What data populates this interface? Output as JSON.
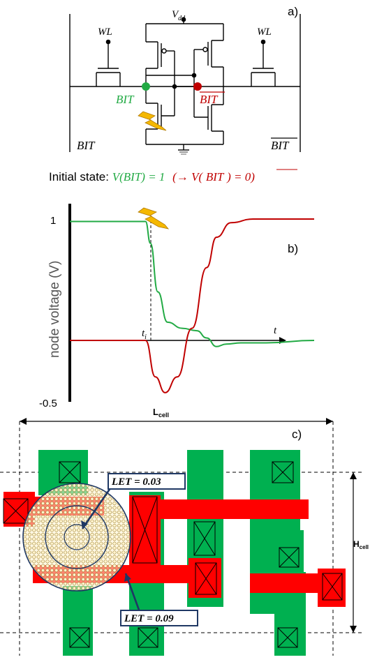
{
  "panel_a": {
    "label": "a)",
    "vdd": "V",
    "vdd_sub": "dd",
    "wl_left": "WL",
    "wl_right": "WL",
    "bit_node": "BIT",
    "bitbar_node": "BIT",
    "bitline_left": "BIT",
    "bitline_right": "BIT",
    "initial_prefix": "Initial state:",
    "initial_green": "V(BIT) = 1",
    "initial_red_open": "(→ V(",
    "initial_red_bit": "BIT",
    "initial_red_close": ") = 0)",
    "colors": {
      "green": "#22aa44",
      "red": "#c00000",
      "strike": "#f5b800"
    }
  },
  "panel_b": {
    "label": "b)",
    "ylabel": "node voltage (V)",
    "tick_top": "1",
    "tick_bottom": "-0.5",
    "ti": "t",
    "ti_sub": "i",
    "t": "t",
    "chart_data": {
      "type": "line",
      "ylim": [
        -0.5,
        1
      ],
      "xlim": [
        0,
        10
      ],
      "ti": 3.1,
      "series": [
        {
          "color": "#22aa44",
          "x": [
            0,
            3.0,
            3.1,
            3.3,
            3.6,
            4.0,
            4.6,
            5.2,
            5.6,
            6.0,
            6.4,
            7.0,
            8.0,
            10
          ],
          "y": [
            0.98,
            0.98,
            0.98,
            0.8,
            0.4,
            0.15,
            0.1,
            0.08,
            0.02,
            -0.05,
            -0.03,
            -0.02,
            -0.02,
            0.0
          ]
        },
        {
          "color": "#c00000",
          "x": [
            0,
            3.0,
            3.1,
            3.5,
            3.9,
            4.4,
            5.0,
            5.6,
            6.0,
            6.6,
            7.5,
            8.5,
            10
          ],
          "y": [
            0.0,
            0.0,
            0.0,
            -0.3,
            -0.43,
            -0.3,
            0.1,
            0.6,
            0.85,
            0.97,
            1.0,
            1.0,
            1.0
          ]
        }
      ]
    }
  },
  "panel_c": {
    "label": "c)",
    "lcell": "L",
    "lcell_sub": "cell",
    "hcell": "H",
    "hcell_sub": "cell",
    "let1": "LET = 0.03",
    "let2": "LET = 0.09",
    "colors": {
      "green": "#00b050",
      "red": "#ff0000",
      "dot": "#fff2cc",
      "callout": "#1f3864"
    }
  }
}
